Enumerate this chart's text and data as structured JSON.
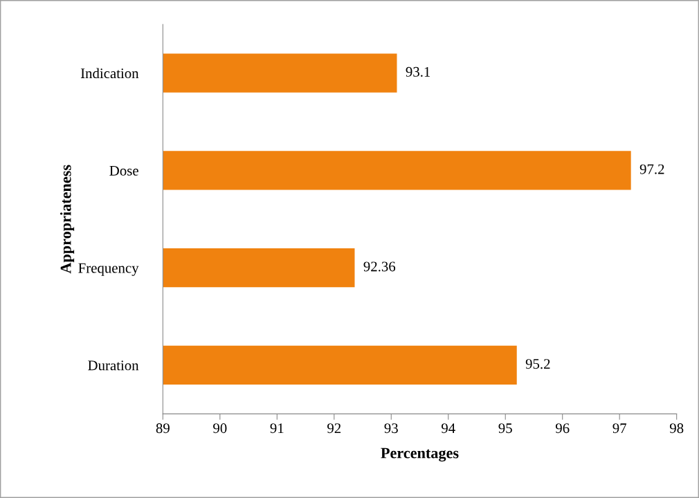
{
  "chart_data": {
    "type": "bar",
    "orientation": "horizontal",
    "xlabel": "Percentages",
    "ylabel": "Appropriateness",
    "categories": [
      "Indication",
      "Dose",
      "Frequency",
      "Duration"
    ],
    "values": [
      93.1,
      97.2,
      92.36,
      95.2
    ],
    "color": "#f0820f",
    "xlim": [
      89,
      98
    ],
    "xticks": [
      89,
      90,
      91,
      92,
      93,
      94,
      95,
      96,
      97,
      98
    ],
    "grid": false,
    "legend": false,
    "data_labels": true
  }
}
